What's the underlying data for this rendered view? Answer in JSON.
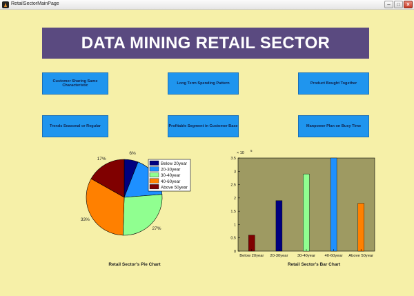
{
  "window": {
    "title": "RetailSectorMainPage"
  },
  "banner": {
    "title": "DATA MINING RETAIL SECTOR"
  },
  "buttons": {
    "customer_sharing": "Customer Sharing Same Characteristic",
    "long_term": "Long Term Spending Pattern",
    "product_bought": "Product Bought Together",
    "trend": "Trends Seasonal or Regular",
    "profitable": "Profitable Segment in Customer Base",
    "manpower": "Manpower Plan on Busy Time"
  },
  "captions": {
    "pie": "Retail Sector's Pie Chart",
    "bar": "Retail Sector's Bar Chart"
  },
  "chart_data": [
    {
      "type": "pie",
      "categories": [
        "Below 20year",
        "20-30year",
        "30-40year",
        "40-60year",
        "Above 50year"
      ],
      "values": [
        6,
        18,
        27,
        33,
        17
      ],
      "labels": [
        "6%",
        "18%",
        "27%",
        "33%",
        "17%"
      ],
      "colors": [
        "#00007f",
        "#1e90ff",
        "#90ff90",
        "#ff8000",
        "#800000"
      ],
      "legend": "top-right"
    },
    {
      "type": "bar",
      "categories": [
        "Below 20year",
        "20-30year",
        "30-40year",
        "40-60year",
        "Above 50year"
      ],
      "values": [
        0.6,
        1.9,
        2.9,
        3.5,
        1.8
      ],
      "colors": [
        "#800000",
        "#00007f",
        "#90ff90",
        "#1e90ff",
        "#ff8000"
      ],
      "ylim": [
        0,
        3.5
      ],
      "yticks": [
        "0",
        "0.5",
        "1",
        "1.5",
        "2",
        "2.5",
        "3",
        "3.5"
      ],
      "multiplier": "× 10",
      "multiplier_exp": "5",
      "plot_background": "#9e9a62"
    }
  ]
}
